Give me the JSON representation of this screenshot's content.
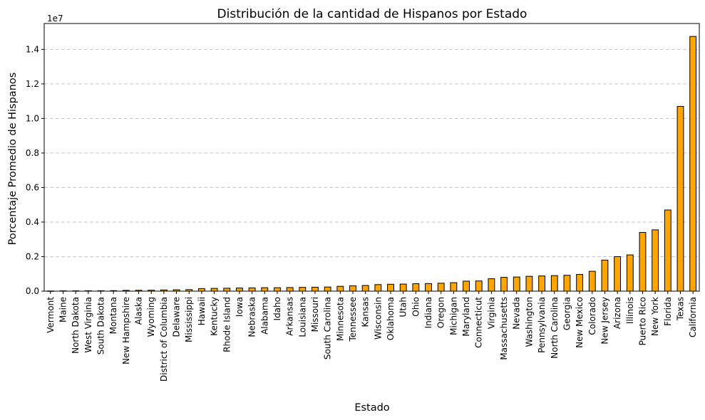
{
  "chart_data": {
    "type": "bar",
    "title": "Distribución de la cantidad de Hispanos por Estado",
    "xlabel": "Estado",
    "ylabel": "Porcentaje Promedio de Hispanos",
    "y_scale_label": "1e7",
    "ylim": [
      0,
      15500000
    ],
    "yticks": [
      0,
      2000000,
      4000000,
      6000000,
      8000000,
      10000000,
      12000000,
      14000000
    ],
    "ytick_labels": [
      "0.0",
      "0.2",
      "0.4",
      "0.6",
      "0.8",
      "1.0",
      "1.2",
      "1.4"
    ],
    "grid": "y-dashed",
    "bar_color": "#ffa500",
    "edge_color": "#000000",
    "categories": [
      "Vermont",
      "Maine",
      "North Dakota",
      "West Virginia",
      "South Dakota",
      "Montana",
      "New Hampshire",
      "Alaska",
      "Wyoming",
      "District of Columbia",
      "Delaware",
      "Mississippi",
      "Hawaii",
      "Kentucky",
      "Rhode Island",
      "Iowa",
      "Nebraska",
      "Alabama",
      "Idaho",
      "Arkansas",
      "Louisiana",
      "Missouri",
      "South Carolina",
      "Minnesota",
      "Tennessee",
      "Kansas",
      "Wisconsin",
      "Oklahoma",
      "Utah",
      "Ohio",
      "Indiana",
      "Oregon",
      "Michigan",
      "Maryland",
      "Connecticut",
      "Virginia",
      "Massachusetts",
      "Nevada",
      "Washington",
      "Pennsylvania",
      "North Carolina",
      "Georgia",
      "New Mexico",
      "Colorado",
      "New Jersey",
      "Arizona",
      "Illinois",
      "Puerto Rico",
      "New York",
      "Florida",
      "Texas",
      "California"
    ],
    "values": [
      10000,
      20000,
      20000,
      25000,
      25000,
      30000,
      45000,
      50000,
      55000,
      70000,
      80000,
      90000,
      150000,
      160000,
      170000,
      180000,
      190000,
      200000,
      200000,
      210000,
      220000,
      230000,
      240000,
      280000,
      310000,
      330000,
      380000,
      400000,
      410000,
      430000,
      440000,
      460000,
      490000,
      580000,
      590000,
      720000,
      800000,
      820000,
      860000,
      880000,
      900000,
      920000,
      970000,
      1150000,
      1800000,
      2000000,
      2100000,
      3400000,
      3550000,
      4700000,
      10700000,
      14750000
    ]
  }
}
